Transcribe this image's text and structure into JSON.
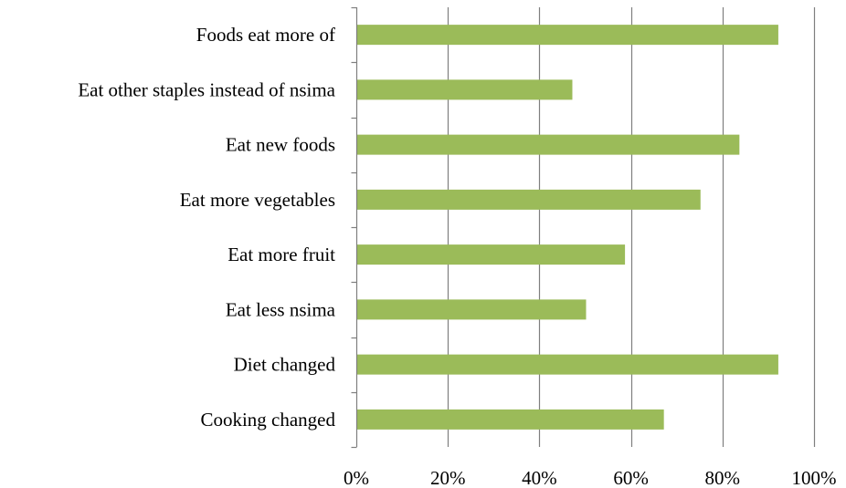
{
  "chart_data": {
    "type": "bar",
    "orientation": "horizontal",
    "categories": [
      "Foods eat more of",
      "Eat other staples instead of nsima",
      "Eat new foods",
      "Eat more vegetables",
      "Eat more fruit",
      "Eat less nsima",
      "Diet changed",
      "Cooking changed"
    ],
    "values": [
      92,
      47,
      83.5,
      75,
      58.5,
      50,
      92,
      67
    ],
    "value_unit": "%",
    "xlim": [
      0,
      100
    ],
    "x_ticks": [
      "0%",
      "20%",
      "40%",
      "60%",
      "80%",
      "100%"
    ],
    "title": "",
    "xlabel": "",
    "ylabel": "",
    "grid": "vertical",
    "legend": "none",
    "colors": {
      "bar": "#9bbb59",
      "grid": "#7f7f7f",
      "axis": "#7f7f7f",
      "text": "#000000"
    }
  }
}
